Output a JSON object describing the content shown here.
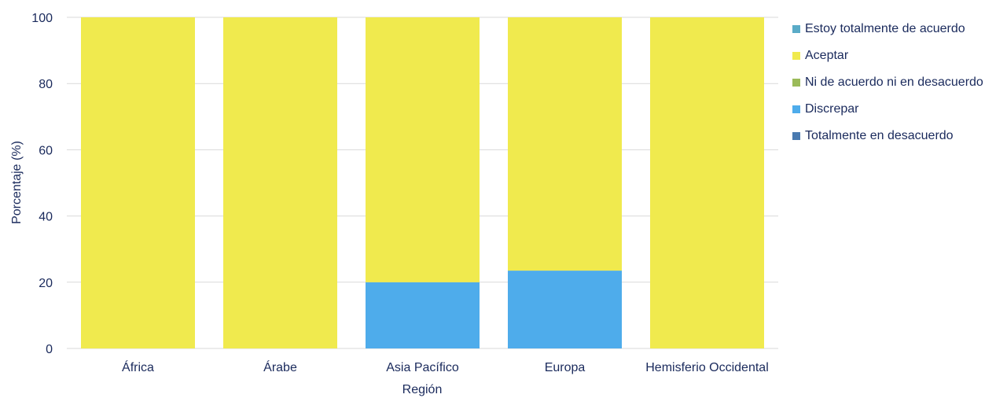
{
  "chart_data": {
    "type": "bar",
    "stacked": true,
    "categories": [
      "África",
      "Árabe",
      "Asia Pacífico",
      "Europa",
      "Hemisferio Occidental"
    ],
    "series": [
      {
        "name": "Totalmente en desacuerdo",
        "color": "#4a7ab0",
        "values": [
          0,
          0,
          0,
          0,
          0
        ]
      },
      {
        "name": "Discrepar",
        "color": "#4eaceb",
        "values": [
          0,
          0,
          20,
          23.5,
          0
        ]
      },
      {
        "name": "Ni de acuerdo ni en desacuerdo",
        "color": "#9bbb59",
        "values": [
          0,
          0,
          0,
          0,
          0
        ]
      },
      {
        "name": "Aceptar",
        "color": "#f0ea4e",
        "values": [
          100,
          100,
          80,
          76.5,
          100
        ]
      },
      {
        "name": "Estoy totalmente de acuerdo",
        "color": "#5aabc7",
        "values": [
          0,
          0,
          0,
          0,
          0
        ]
      }
    ],
    "legend_order": [
      "Estoy totalmente de acuerdo",
      "Aceptar",
      "Ni de acuerdo ni en desacuerdo",
      "Discrepar",
      "Totalmente en desacuerdo"
    ],
    "xlabel": "Región",
    "ylabel": "Porcentaje (%)",
    "ylim": [
      0,
      100
    ],
    "yticks": [
      "0",
      "20",
      "40",
      "60",
      "80",
      "100"
    ],
    "grid": true,
    "legend_position": "right"
  }
}
